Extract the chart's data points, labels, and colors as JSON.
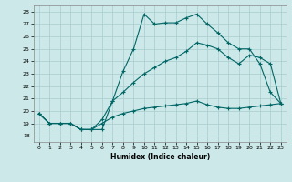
{
  "xlabel": "Humidex (Indice chaleur)",
  "xlim": [
    -0.5,
    23.5
  ],
  "ylim": [
    17.5,
    28.5
  ],
  "xticks": [
    0,
    1,
    2,
    3,
    4,
    5,
    6,
    7,
    8,
    9,
    10,
    11,
    12,
    13,
    14,
    15,
    16,
    17,
    18,
    19,
    20,
    21,
    22,
    23
  ],
  "yticks": [
    18,
    19,
    20,
    21,
    22,
    23,
    24,
    25,
    26,
    27,
    28
  ],
  "bg_color": "#cce8e8",
  "line_color": "#006666",
  "series1_x": [
    0,
    1,
    2,
    3,
    4,
    5,
    6,
    7,
    8,
    9,
    10,
    11,
    12,
    13,
    14,
    15,
    16,
    17,
    18,
    19,
    20,
    21,
    22,
    23
  ],
  "series1_y": [
    19.8,
    19.0,
    19.0,
    19.0,
    18.5,
    18.5,
    18.5,
    20.8,
    23.2,
    25.0,
    27.8,
    27.0,
    27.1,
    27.1,
    27.5,
    27.8,
    27.0,
    26.3,
    25.5,
    25.0,
    25.0,
    23.8,
    21.5,
    20.6
  ],
  "series2_x": [
    0,
    1,
    2,
    3,
    4,
    5,
    6,
    7,
    8,
    9,
    10,
    11,
    12,
    13,
    14,
    15,
    16,
    17,
    18,
    19,
    20,
    21,
    22,
    23
  ],
  "series2_y": [
    19.8,
    19.0,
    19.0,
    19.0,
    18.5,
    18.5,
    19.3,
    20.8,
    21.5,
    22.3,
    23.0,
    23.5,
    24.0,
    24.3,
    24.8,
    25.5,
    25.3,
    25.0,
    24.3,
    23.8,
    24.5,
    24.3,
    23.8,
    20.6
  ],
  "series3_x": [
    0,
    1,
    2,
    3,
    4,
    5,
    6,
    7,
    8,
    9,
    10,
    11,
    12,
    13,
    14,
    15,
    16,
    17,
    18,
    19,
    20,
    21,
    22,
    23
  ],
  "series3_y": [
    19.8,
    19.0,
    19.0,
    19.0,
    18.5,
    18.5,
    19.0,
    19.5,
    19.8,
    20.0,
    20.2,
    20.3,
    20.4,
    20.5,
    20.6,
    20.8,
    20.5,
    20.3,
    20.2,
    20.2,
    20.3,
    20.4,
    20.5,
    20.6
  ]
}
